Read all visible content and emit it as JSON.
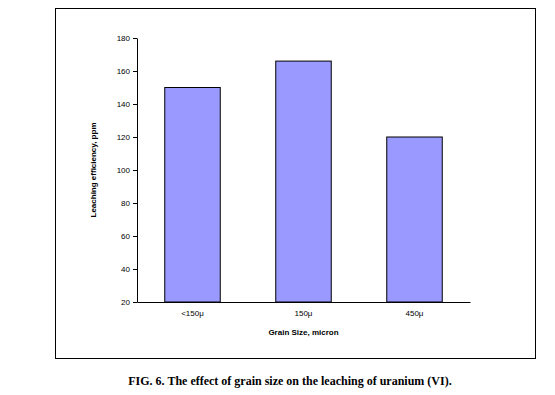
{
  "chart_data": {
    "type": "bar",
    "title": "FIG. 6. The effect of grain size on the leaching of uranium (VI).",
    "x_label": "Grain Size, micron",
    "y_label": "Leaching efficiency, ppm",
    "categories": [
      "<150μ",
      "150μ",
      "450μ"
    ],
    "values": [
      150,
      166,
      120
    ],
    "color": "#9999ff",
    "ylim": [
      20,
      180
    ],
    "yticks": [
      20,
      40,
      60,
      80,
      100,
      120,
      140,
      160,
      180
    ],
    "grid": false
  }
}
